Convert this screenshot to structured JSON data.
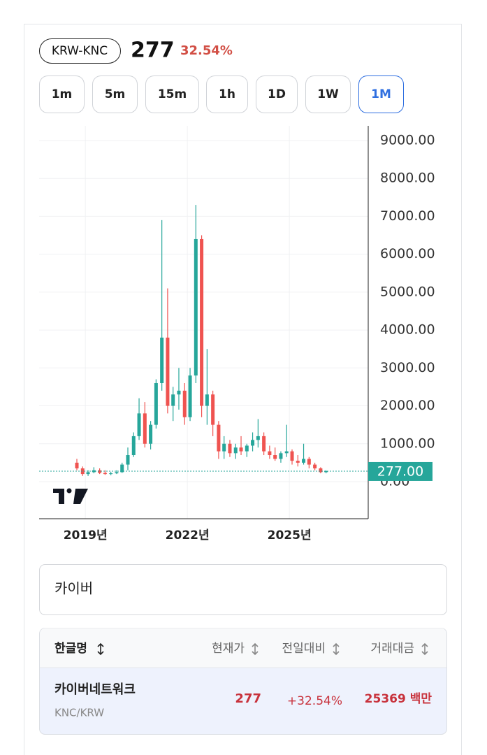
{
  "header": {
    "symbol": "KRW-KNC",
    "price": "277",
    "change": "32.54%"
  },
  "intervals": [
    "1m",
    "5m",
    "15m",
    "1h",
    "1D",
    "1W",
    "1M"
  ],
  "active_interval": 6,
  "chart_data": {
    "type": "candlestick",
    "x": [
      2018.75,
      2018.92,
      2019.08,
      2019.25,
      2019.42,
      2019.58,
      2019.75,
      2019.92,
      2020.08,
      2020.25,
      2020.42,
      2020.58,
      2020.75,
      2020.92,
      2021.08,
      2021.25,
      2021.42,
      2021.58,
      2021.75,
      2021.92,
      2022.08,
      2022.25,
      2022.42,
      2022.58,
      2022.75,
      2022.92,
      2023.08,
      2023.25,
      2023.42,
      2023.58,
      2023.75,
      2023.92,
      2024.08,
      2024.25,
      2024.42,
      2024.58,
      2024.75,
      2024.92,
      2025.08,
      2025.25,
      2025.42,
      2025.58,
      2025.75,
      2025.92,
      2026.08
    ],
    "open": [
      500,
      350,
      200,
      250,
      300,
      230,
      200,
      220,
      250,
      450,
      700,
      1200,
      1800,
      1000,
      1500,
      2600,
      3800,
      2000,
      2300,
      2400,
      1700,
      2800,
      6400,
      2000,
      2300,
      1500,
      800,
      1000,
      750,
      900,
      800,
      950,
      1100,
      1200,
      800,
      700,
      600,
      750,
      800,
      550,
      500,
      600,
      450,
      350,
      250
    ],
    "high": [
      600,
      400,
      300,
      380,
      350,
      300,
      260,
      300,
      500,
      900,
      1300,
      2200,
      2100,
      1600,
      2700,
      6900,
      5100,
      2500,
      3000,
      2600,
      3000,
      7300,
      6500,
      3500,
      2400,
      1600,
      1200,
      1100,
      1000,
      1200,
      1000,
      1300,
      1650,
      1300,
      950,
      900,
      800,
      1500,
      850,
      700,
      1000,
      650,
      500,
      380,
      300
    ],
    "low": [
      300,
      150,
      150,
      220,
      200,
      180,
      170,
      200,
      230,
      300,
      650,
      1100,
      900,
      850,
      1400,
      2400,
      1800,
      1600,
      1900,
      1500,
      1600,
      2600,
      1700,
      1500,
      1200,
      600,
      600,
      650,
      600,
      700,
      650,
      800,
      900,
      700,
      600,
      550,
      500,
      650,
      450,
      400,
      450,
      350,
      300,
      220,
      220
    ],
    "close": [
      350,
      200,
      250,
      300,
      230,
      200,
      220,
      250,
      450,
      700,
      1200,
      1800,
      1000,
      1500,
      2600,
      3800,
      2000,
      2300,
      2400,
      1700,
      2800,
      6400,
      2000,
      2300,
      1500,
      800,
      1000,
      750,
      900,
      800,
      950,
      1100,
      1200,
      800,
      700,
      600,
      750,
      800,
      550,
      500,
      600,
      450,
      350,
      250,
      277
    ],
    "up_color": "#26a69a",
    "down_color": "#ef5350",
    "xlim": [
      2017.64,
      2027.32
    ],
    "ylim": [
      -978,
      9387
    ],
    "xticks": [
      {
        "value": 2019,
        "label": "2019년"
      },
      {
        "value": 2022,
        "label": "2022년"
      },
      {
        "value": 2025,
        "label": "2025년"
      }
    ],
    "yticks": [
      {
        "value": 0,
        "label": "0.00"
      },
      {
        "value": 1000,
        "label": "1000.00"
      },
      {
        "value": 2000,
        "label": "2000.00"
      },
      {
        "value": 3000,
        "label": "3000.00"
      },
      {
        "value": 4000,
        "label": "4000.00"
      },
      {
        "value": 5000,
        "label": "5000.00"
      },
      {
        "value": 6000,
        "label": "6000.00"
      },
      {
        "value": 7000,
        "label": "7000.00"
      },
      {
        "value": 8000,
        "label": "8000.00"
      },
      {
        "value": 9000,
        "label": "9000.00"
      }
    ],
    "grid": true,
    "last_price": {
      "value": 277,
      "label": "277.00"
    }
  },
  "search": {
    "query": "카이버"
  },
  "table": {
    "headers": [
      "한글명",
      "현재가",
      "전일대비",
      "거래대금"
    ],
    "rows": [
      {
        "name": "카이버네트워크",
        "market": "KNC/KRW",
        "price": "277",
        "change": "+32.54%",
        "volume": "25369 백만"
      }
    ]
  }
}
